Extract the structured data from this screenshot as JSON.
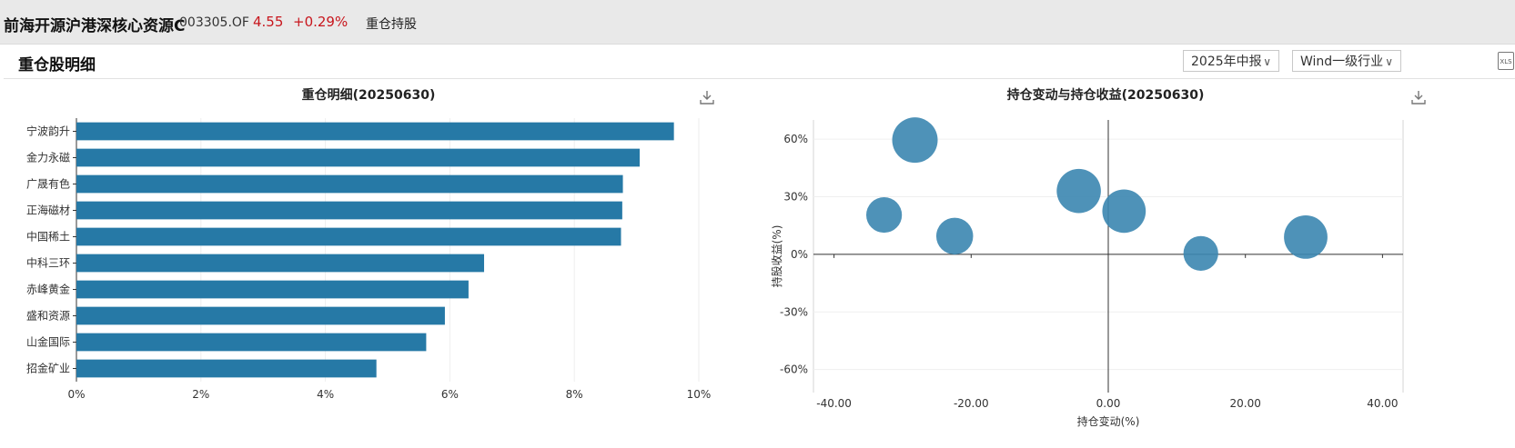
{
  "header": {
    "fund_name": "前海开源沪港深核心资源C",
    "fund_code": "003305.OF",
    "price": "4.55",
    "change": "+0.29%",
    "tab": "重仓持股"
  },
  "panel": {
    "title": "重仓股明细",
    "report_select": "2025年中报",
    "industry_select": "Wind一级行业"
  },
  "colors": {
    "bar": "#2679a6",
    "bubble": "#3b86b0",
    "price_up": "#c8161d"
  },
  "chart_data": [
    {
      "type": "bar",
      "orientation": "horizontal",
      "title": "重仓明细(20250630)",
      "categories": [
        "宁波韵升",
        "金力永磁",
        "广晟有色",
        "正海磁材",
        "中国稀土",
        "中科三环",
        "赤峰黄金",
        "盛和资源",
        "山金国际",
        "招金矿业"
      ],
      "values": [
        9.6,
        9.05,
        8.78,
        8.77,
        8.75,
        6.55,
        6.3,
        5.92,
        5.62,
        4.82
      ],
      "xlim": [
        0,
        10
      ],
      "x_ticks": [
        "0%",
        "2%",
        "4%",
        "6%",
        "8%",
        "10%"
      ],
      "x_tick_values": [
        0,
        2,
        4,
        6,
        8,
        10
      ],
      "grid": true
    },
    {
      "type": "scatter",
      "title": "持仓变动与持仓收益(20250630)",
      "xlabel": "持仓变动(%)",
      "ylabel": "持股收益(%)",
      "xlim": [
        -43,
        43
      ],
      "ylim": [
        -72,
        70
      ],
      "x_ticks": [
        "-40.00",
        "-20.00",
        "0.00",
        "20.00",
        "40.00"
      ],
      "x_tick_values": [
        -40,
        -20,
        0,
        20,
        40
      ],
      "y_ticks": [
        "60%",
        "30%",
        "0%",
        "-30%",
        "-60%"
      ],
      "y_tick_values": [
        60,
        30,
        0,
        -30,
        -60
      ],
      "points": [
        {
          "x": -28.2,
          "y": 59.5,
          "size": 9.6
        },
        {
          "x": -32.7,
          "y": 20.5,
          "size": 5.9
        },
        {
          "x": -22.4,
          "y": 9.5,
          "size": 6.3
        },
        {
          "x": -4.3,
          "y": 33.0,
          "size": 9.05
        },
        {
          "x": 2.3,
          "y": 22.5,
          "size": 8.75
        },
        {
          "x": 13.5,
          "y": 0.5,
          "size": 5.62
        },
        {
          "x": 28.8,
          "y": 9.0,
          "size": 8.78
        }
      ],
      "grid": true
    }
  ]
}
